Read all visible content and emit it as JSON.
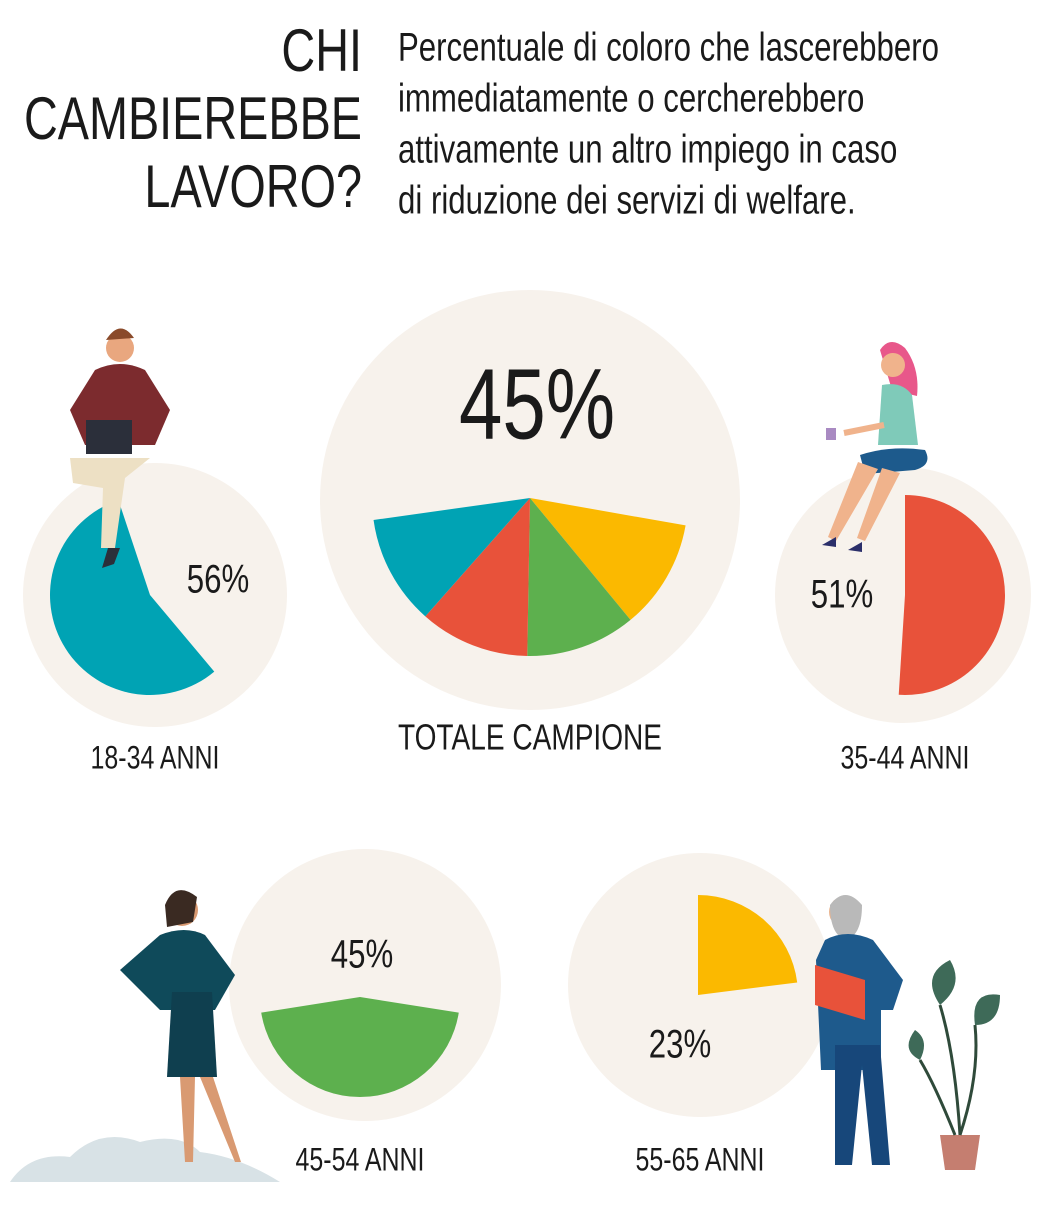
{
  "title": [
    "CHI",
    "CAMBIEREBBE",
    "LAVORO?"
  ],
  "subtitle": [
    "Percentuale di coloro che lascerebbero",
    "immediatamente o cercherebbero",
    "attivamente un altro impiego in caso",
    "di riduzione dei servizi di welfare."
  ],
  "total": {
    "value": 45,
    "value_label": "45%",
    "label": "TOTALE CAMPIONE"
  },
  "groups": [
    {
      "label": "18-34 ANNI",
      "value": 56,
      "value_label": "56%",
      "color": "#00a3b4"
    },
    {
      "label": "35-44 ANNI",
      "value": 51,
      "value_label": "51%",
      "color": "#e8523a"
    },
    {
      "label": "45-54 ANNI",
      "value": 45,
      "value_label": "45%",
      "color": "#5db04e"
    },
    {
      "label": "55-65 ANNI",
      "value": 23,
      "value_label": "23%",
      "color": "#fbb900"
    }
  ]
}
